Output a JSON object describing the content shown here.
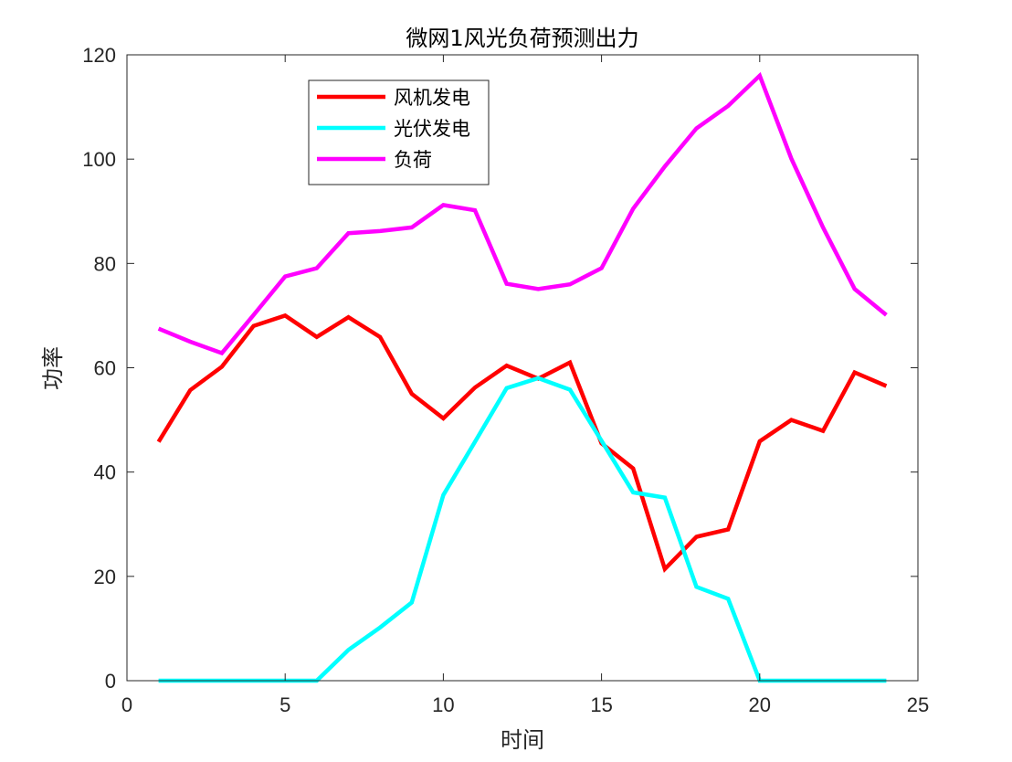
{
  "chart_data": {
    "type": "line",
    "title": "微网1风光负荷预测出力",
    "xlabel": "时间",
    "ylabel": "功率",
    "xlim": [
      0,
      25
    ],
    "ylim": [
      0,
      120
    ],
    "x_ticks": [
      "0",
      "5",
      "10",
      "15",
      "20",
      "25"
    ],
    "y_ticks": [
      "0",
      "20",
      "40",
      "60",
      "80",
      "100",
      "120"
    ],
    "grid": false,
    "legend_position": "top-left inside",
    "x": [
      1,
      2,
      3,
      4,
      5,
      6,
      7,
      8,
      9,
      10,
      11,
      12,
      13,
      14,
      15,
      16,
      17,
      18,
      19,
      20,
      21,
      22,
      23,
      24
    ],
    "series": [
      {
        "name": "风机发电",
        "color": "#ff0000",
        "values": [
          45.8,
          55.7,
          60.2,
          68.0,
          70.0,
          65.9,
          69.7,
          65.9,
          55.0,
          50.3,
          56.2,
          60.4,
          57.9,
          61.0,
          45.5,
          40.7,
          21.4,
          27.6,
          29.0,
          45.9,
          50.0,
          47.9,
          59.1,
          56.5
        ]
      },
      {
        "name": "光伏发电",
        "color": "#00ffff",
        "values": [
          0,
          0,
          0,
          0,
          0,
          0,
          5.9,
          10.2,
          15.0,
          35.6,
          45.8,
          56.1,
          58.0,
          55.8,
          46.0,
          36.1,
          35.1,
          18.0,
          15.7,
          0,
          0,
          0,
          0,
          0
        ]
      },
      {
        "name": "负荷",
        "color": "#ff00ff",
        "values": [
          67.5,
          65.0,
          62.8,
          70.1,
          77.5,
          79.1,
          85.8,
          86.2,
          86.9,
          91.2,
          90.2,
          76.1,
          75.1,
          76.0,
          79.1,
          90.5,
          98.6,
          105.9,
          110.2,
          116.0,
          100.1,
          86.9,
          75.1,
          70.1
        ]
      }
    ]
  }
}
